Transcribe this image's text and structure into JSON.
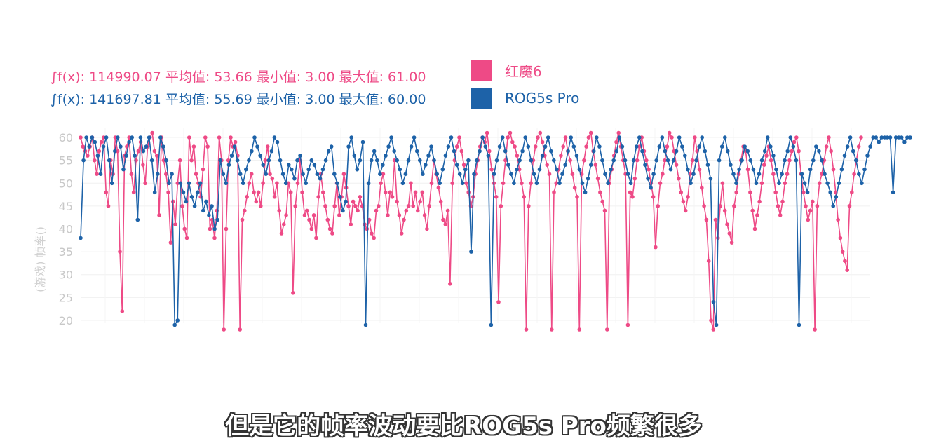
{
  "stats": [
    {
      "name": "红魔6",
      "integral": "∫f(x): 114990.07",
      "avg": "平均值: 53.66",
      "min": "最小值: 3.00",
      "max": "最大值: 61.00",
      "color": "#ee4a86"
    },
    {
      "name": "ROG5s Pro",
      "integral": "∫f(x): 141697.81",
      "avg": "平均值: 55.69",
      "min": "最小值: 3.00",
      "max": "最大值: 60.00",
      "color": "#1d62a8"
    }
  ],
  "legend": [
    {
      "label": "红魔6",
      "color": "#ee4a86"
    },
    {
      "label": "ROG5s Pro",
      "color": "#1d62a8"
    }
  ],
  "subtitle": "但是它的帧率波动要比ROG5s Pro频繁很多",
  "chart_data": {
    "type": "line",
    "title": "",
    "xlabel": "",
    "ylabel": "(游戏) 帧率()",
    "ylim": [
      18,
      62
    ],
    "y_ticks": [
      "60",
      "55",
      "50",
      "45",
      "40",
      "35",
      "30",
      "25",
      "20"
    ],
    "y_tick_values": [
      60,
      55,
      50,
      45,
      40,
      35,
      30,
      25,
      20
    ],
    "x": "sample index 0-1200 (approx.)",
    "series": [
      {
        "name": "红魔6",
        "color": "#ee4a86",
        "values": [
          60,
          58,
          57,
          56,
          58,
          60,
          55,
          52,
          57,
          59,
          60,
          48,
          45,
          55,
          52,
          60,
          57,
          35,
          22,
          56,
          58,
          60,
          52,
          48,
          55,
          57,
          59,
          54,
          50,
          58,
          60,
          61,
          57,
          56,
          43,
          60,
          55,
          52,
          48,
          37,
          46,
          41,
          50,
          55,
          45,
          40,
          38,
          60,
          55,
          58,
          52,
          50,
          47,
          53,
          60,
          58,
          40,
          42,
          38,
          44,
          60,
          55,
          18,
          40,
          55,
          60,
          58,
          59,
          56,
          18,
          42,
          44,
          47,
          50,
          52,
          48,
          46,
          48,
          45,
          50,
          55,
          58,
          52,
          51,
          47,
          50,
          44,
          39,
          41,
          43,
          50,
          48,
          26,
          45,
          50,
          55,
          48,
          43,
          44,
          42,
          40,
          43,
          38,
          47,
          52,
          48,
          45,
          42,
          40,
          39,
          45,
          50,
          43,
          47,
          52,
          49,
          45,
          41,
          46,
          45,
          44,
          47,
          45,
          41,
          40,
          42,
          39,
          38,
          44,
          45,
          50,
          52,
          48,
          43,
          48,
          47,
          55,
          46,
          43,
          39,
          42,
          44,
          45,
          50,
          45,
          48,
          44,
          46,
          48,
          43,
          40,
          45,
          50,
          55,
          52,
          49,
          46,
          42,
          41,
          44,
          28,
          50,
          55,
          58,
          60,
          57,
          54,
          50,
          48,
          45,
          47,
          52,
          55,
          58,
          60,
          59,
          61,
          57,
          53,
          50,
          47,
          24,
          45,
          50,
          55,
          60,
          61,
          59,
          58,
          56,
          53,
          50,
          47,
          18,
          45,
          50,
          55,
          58,
          60,
          61,
          59,
          56,
          54,
          52,
          18,
          48,
          50,
          53,
          56,
          58,
          60,
          57,
          55,
          52,
          49,
          47,
          18,
          52,
          55,
          58,
          60,
          61,
          57,
          54,
          51,
          48,
          46,
          44,
          18,
          50,
          53,
          56,
          59,
          61,
          58,
          55,
          52,
          19,
          48,
          47,
          51,
          55,
          58,
          60,
          57,
          55,
          53,
          50,
          47,
          36,
          45,
          50,
          52,
          55,
          58,
          61,
          60,
          57,
          54,
          51,
          48,
          46,
          44,
          47,
          52,
          55,
          60,
          57,
          53,
          49,
          45,
          42,
          33,
          20,
          18,
          42,
          38,
          45,
          50,
          44,
          41,
          39,
          37,
          45,
          48,
          52,
          55,
          58,
          57,
          53,
          48,
          44,
          40,
          43,
          46,
          50,
          54,
          56,
          58,
          55,
          52,
          48,
          45,
          43,
          46,
          50,
          52,
          55,
          57,
          59,
          60,
          57,
          52,
          48,
          45,
          42,
          44,
          46,
          18,
          45,
          50,
          52,
          55,
          58,
          60,
          57,
          53,
          48,
          42,
          38,
          35,
          33,
          31,
          45,
          48,
          52,
          55,
          58,
          60
        ],
        "note": "approximate reading; dense high-frequency series with deep dips"
      },
      {
        "name": "ROG5s Pro",
        "color": "#1d62a8",
        "values": [
          38,
          55,
          60,
          58,
          60,
          59,
          56,
          52,
          58,
          60,
          55,
          50,
          57,
          60,
          58,
          53,
          56,
          59,
          60,
          56,
          42,
          60,
          57,
          58,
          60,
          55,
          48,
          52,
          60,
          58,
          55,
          50,
          52,
          19,
          20,
          50,
          48,
          46,
          50,
          47,
          45,
          48,
          50,
          44,
          46,
          43,
          45,
          40,
          42,
          55,
          52,
          50,
          54,
          56,
          58,
          55,
          52,
          50,
          53,
          55,
          57,
          60,
          58,
          56,
          54,
          52,
          55,
          57,
          60,
          59,
          55,
          52,
          50,
          54,
          53,
          51,
          55,
          56,
          52,
          50,
          53,
          55,
          54,
          52,
          51,
          53,
          55,
          57,
          58,
          52,
          50,
          47,
          44,
          46,
          58,
          60,
          56,
          53,
          55,
          59,
          19,
          50,
          55,
          57,
          55,
          52,
          54,
          56,
          58,
          60,
          57,
          55,
          53,
          50,
          52,
          55,
          58,
          60,
          57,
          55,
          52,
          54,
          56,
          58,
          55,
          52,
          50,
          53,
          56,
          58,
          60,
          57,
          54,
          52,
          50,
          53,
          55,
          35,
          52,
          55,
          57,
          60,
          58,
          56,
          19,
          52,
          55,
          58,
          60,
          57,
          54,
          52,
          50,
          53,
          55,
          57,
          60,
          58,
          55,
          52,
          50,
          53,
          56,
          58,
          60,
          57,
          55,
          53,
          50,
          52,
          54,
          57,
          60,
          58,
          56,
          53,
          50,
          48,
          51,
          54,
          57,
          60,
          58,
          55,
          52,
          50,
          53,
          55,
          57,
          60,
          58,
          55,
          52,
          50,
          55,
          58,
          60,
          57,
          54,
          51,
          49,
          52,
          55,
          58,
          60,
          57,
          55,
          53,
          55,
          57,
          60,
          58,
          56,
          53,
          50,
          52,
          55,
          58,
          60,
          57,
          54,
          51,
          24,
          19,
          55,
          58,
          60,
          57,
          54,
          52,
          50,
          53,
          55,
          58,
          57,
          55,
          53,
          50,
          52,
          55,
          57,
          60,
          58,
          56,
          53,
          50,
          52,
          55,
          57,
          60,
          58,
          55,
          19,
          52,
          50,
          48,
          53,
          55,
          58,
          57,
          55,
          52,
          50,
          48,
          45,
          47,
          50,
          53,
          56,
          58,
          60,
          57,
          55,
          52,
          50,
          53,
          56,
          58,
          60,
          60,
          59,
          60,
          60,
          60,
          60,
          48,
          60,
          60,
          60,
          59,
          60,
          60
        ]
      }
    ]
  }
}
